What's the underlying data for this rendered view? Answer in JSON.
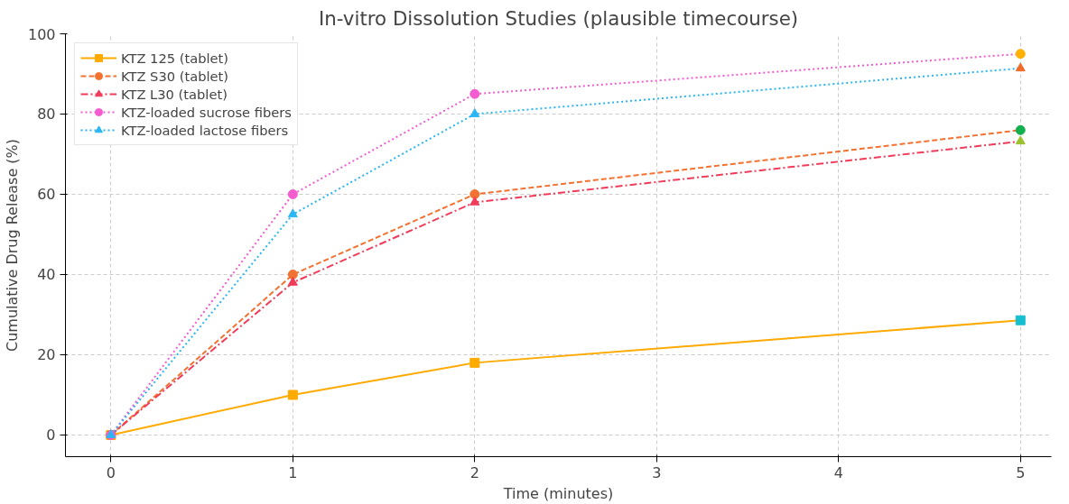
{
  "chart_data": {
    "type": "line",
    "title": "In-vitro Dissolution Studies (plausible timecourse)",
    "xlabel": "Time (minutes)",
    "ylabel": "Cumulative Drug Release (%)",
    "x": [
      0,
      1,
      2,
      5
    ],
    "series": [
      {
        "name": "KTZ 125 (tablet)",
        "color": "#ffaa00",
        "values": [
          0,
          10,
          18,
          28.6
        ],
        "marker": "square",
        "line_style": "solid",
        "colors": [
          "#ffaa00",
          "#ffaa00",
          "#ffaa00",
          "#17becf"
        ]
      },
      {
        "name": "KTZ S30 (tablet)",
        "color": "#f47231",
        "values": [
          0,
          40,
          60,
          76
        ],
        "marker": "circle",
        "line_style": "dashed",
        "colors": [
          "#f47231",
          "#f47231",
          "#f47231",
          "#12b04f"
        ]
      },
      {
        "name": "KTZ L30 (tablet)",
        "color": "#f03c5a",
        "values": [
          0,
          38,
          58,
          73.2
        ],
        "marker": "triangle",
        "line_style": "dashdot",
        "colors": [
          "#f03c5a",
          "#f03c5a",
          "#f03c5a",
          "#9bc12c"
        ]
      },
      {
        "name": "KTZ-loaded sucrose fibers",
        "color": "#f45ccf",
        "values": [
          0,
          60,
          85,
          95
        ],
        "marker": "circle",
        "line_style": "dotted",
        "colors": [
          "#f45ccf",
          "#f45ccf",
          "#f45ccf",
          "#ffb000"
        ]
      },
      {
        "name": "KTZ-loaded lactose fibers",
        "color": "#2bb6f3",
        "values": [
          0,
          55,
          80,
          91.4
        ],
        "marker": "triangle",
        "line_style": "dotted",
        "colors": [
          "#2bb6f3",
          "#2bb6f3",
          "#2bb6f3",
          "#f06a2a"
        ]
      }
    ],
    "xlim": [
      -0.25,
      5.17
    ],
    "ylim": [
      -5.4,
      100
    ],
    "xticks": [
      0,
      1,
      2,
      3,
      4,
      5
    ],
    "yticks": [
      0,
      20,
      40,
      60,
      80,
      100
    ],
    "grid": true,
    "legend": "top left"
  }
}
